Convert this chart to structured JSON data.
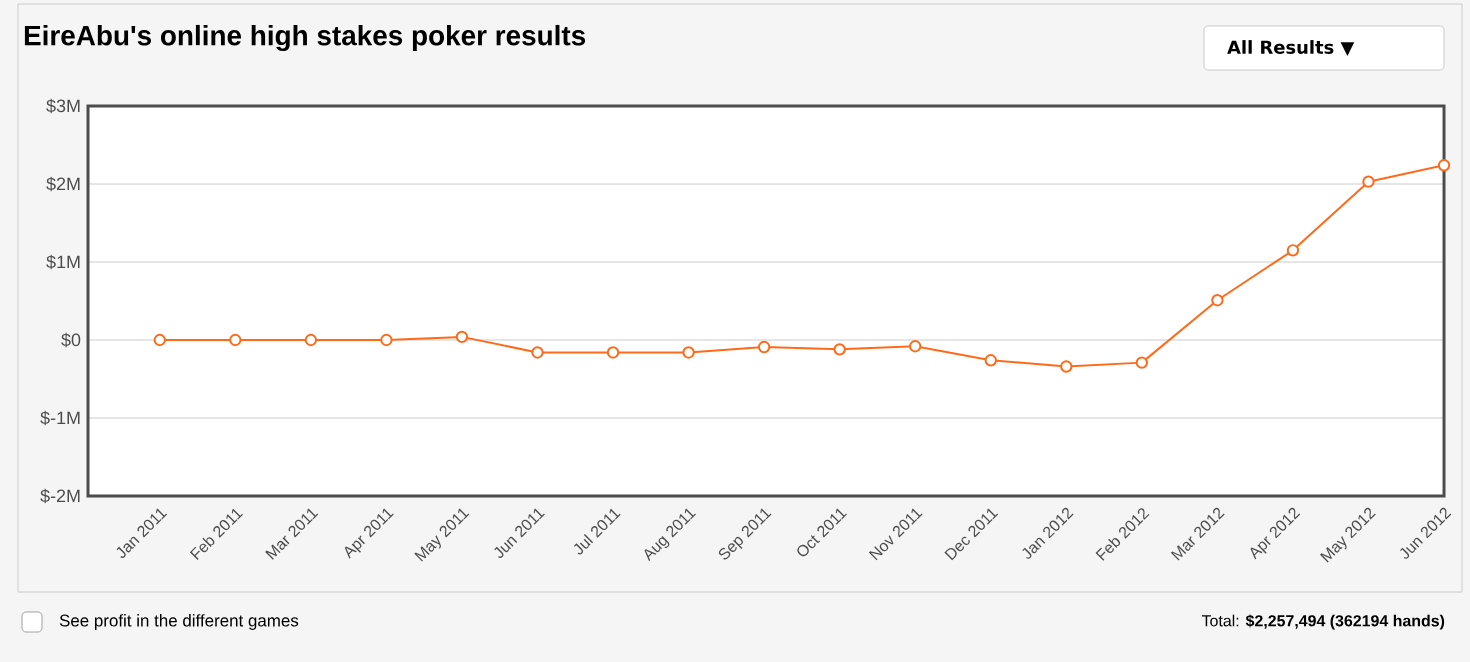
{
  "chart_data": {
    "type": "line",
    "title": "EireAbu's online high stakes poker results",
    "categories": [
      "Jan 2011",
      "Feb 2011",
      "Mar 2011",
      "Apr 2011",
      "May 2011",
      "Jun 2011",
      "Jul 2011",
      "Aug 2011",
      "Sep 2011",
      "Oct 2011",
      "Nov 2011",
      "Dec 2011",
      "Jan 2012",
      "Feb 2012",
      "Mar 2012",
      "Apr 2012",
      "May 2012",
      "Jun 2012"
    ],
    "series": [
      {
        "color": "#ff6a1a",
        "values": [
          0,
          0,
          0,
          0,
          40000,
          -160000,
          -160000,
          -160000,
          -90000,
          -120000,
          -80000,
          -260000,
          -340000,
          -290000,
          510000,
          1150000,
          2030000,
          2240000
        ]
      }
    ],
    "ylim": [
      -2000000,
      3000000
    ],
    "yticks": [
      {
        "value": -2000000,
        "label": "$-2M"
      },
      {
        "value": -1000000,
        "label": "$-1M"
      },
      {
        "value": 0,
        "label": "$0"
      },
      {
        "value": 1000000,
        "label": "$1M"
      },
      {
        "value": 2000000,
        "label": "$2M"
      },
      {
        "value": 3000000,
        "label": "$3M"
      }
    ],
    "grid": "y",
    "marker": "circle",
    "line_style": "solid",
    "annotations": [
      "All Results ▼",
      "See profit in the different games",
      "Total: **$2,257,494 (362194 hands)**"
    ]
  }
}
